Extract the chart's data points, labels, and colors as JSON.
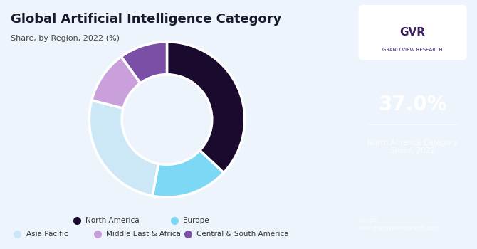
{
  "title_line1": "Global Artificial Intelligence Category",
  "title_line2": "Share, by Region, 2022 (%)",
  "segments": [
    "North America",
    "Europe",
    "Asia Pacific",
    "Middle East & Africa",
    "Central & South America"
  ],
  "values": [
    37.0,
    16.0,
    26.0,
    11.0,
    10.0
  ],
  "colors": [
    "#1a0a2e",
    "#7dd8f5",
    "#cce8f7",
    "#c9a0dc",
    "#7b4fa6"
  ],
  "startangle": 90,
  "highlight_value": "37.0%",
  "highlight_label": "North America Category\nShare, 2022",
  "sidebar_bg": "#3b1f5e",
  "chart_bg": "#eef4fb",
  "legend_order": [
    "North America",
    "Europe",
    "Asia Pacific",
    "Middle East & Africa",
    "Central & South America"
  ]
}
